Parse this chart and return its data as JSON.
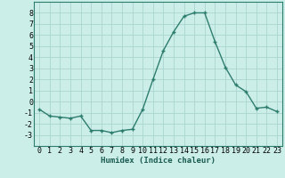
{
  "x": [
    0,
    1,
    2,
    3,
    4,
    5,
    6,
    7,
    8,
    9,
    10,
    11,
    12,
    13,
    14,
    15,
    16,
    17,
    18,
    19,
    20,
    21,
    22,
    23
  ],
  "y": [
    -0.7,
    -1.3,
    -1.4,
    -1.5,
    -1.3,
    -2.6,
    -2.6,
    -2.8,
    -2.6,
    -2.5,
    -0.7,
    2.0,
    4.6,
    6.3,
    7.7,
    8.0,
    8.0,
    5.4,
    3.1,
    1.5,
    0.9,
    -0.6,
    -0.5,
    -0.9
  ],
  "line_color": "#2d7d6e",
  "marker": "+",
  "markersize": 3.5,
  "linewidth": 1.0,
  "xlabel": "Humidex (Indice chaleur)",
  "xlabel_fontsize": 6.5,
  "xlabel_fontweight": "bold",
  "bg_color": "#cceee8",
  "grid_color": "#aad4ce",
  "tick_label_fontsize": 6,
  "ylim": [
    -4,
    9
  ],
  "yticks": [
    -3,
    -2,
    -1,
    0,
    1,
    2,
    3,
    4,
    5,
    6,
    7,
    8
  ],
  "xlim": [
    -0.5,
    23.5
  ],
  "xticks": [
    0,
    1,
    2,
    3,
    4,
    5,
    6,
    7,
    8,
    9,
    10,
    11,
    12,
    13,
    14,
    15,
    16,
    17,
    18,
    19,
    20,
    21,
    22,
    23
  ]
}
